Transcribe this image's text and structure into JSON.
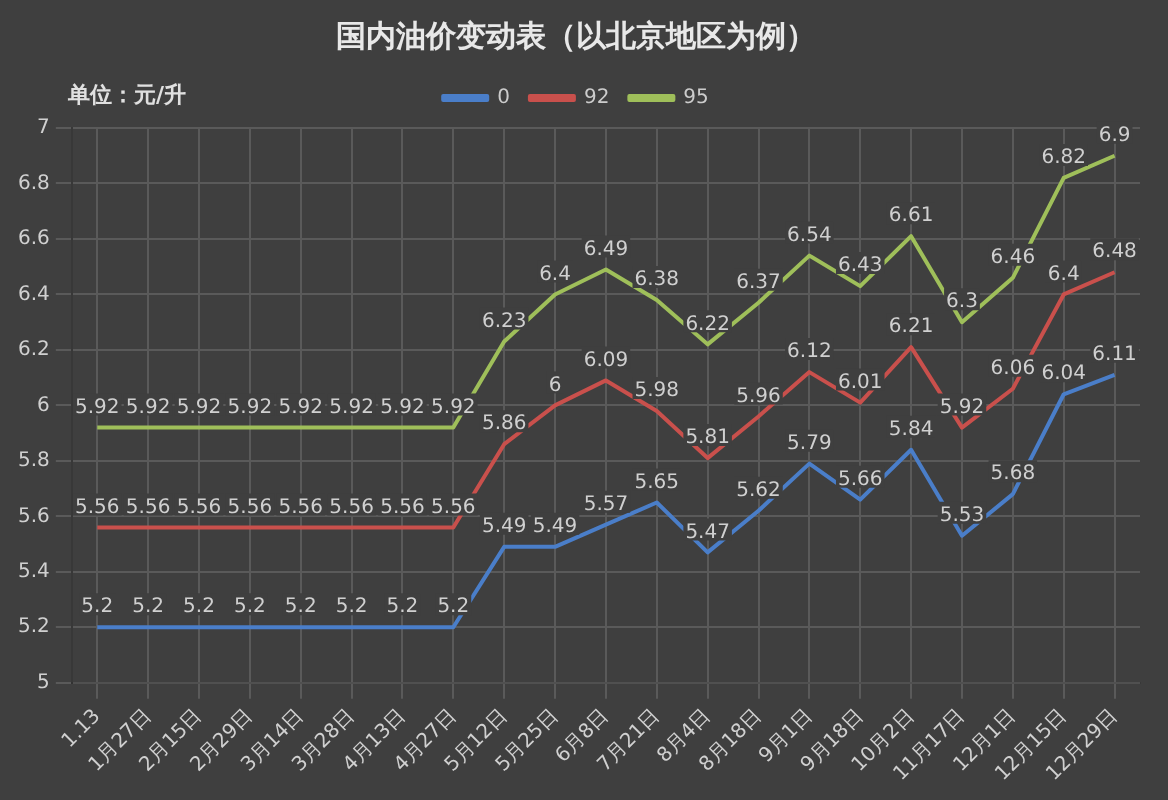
{
  "chart_data": {
    "type": "line",
    "title": "国内油价变动表（以北京地区为例）",
    "annotations": [
      "单位：元/升"
    ],
    "categories": [
      "1.13",
      "1月27日",
      "2月15日",
      "2月29日",
      "3月14日",
      "3月28日",
      "4月13日",
      "4月27日",
      "5月12日",
      "5月25日",
      "6月8日",
      "7月21日",
      "8月4日",
      "8月18日",
      "9月1日",
      "9月18日",
      "10月2日",
      "11月17日",
      "12月1日",
      "12月15日",
      "12月29日"
    ],
    "series": [
      {
        "name": "0",
        "color": "#4a7ec9",
        "values": [
          5.2,
          5.2,
          5.2,
          5.2,
          5.2,
          5.2,
          5.2,
          5.2,
          5.49,
          5.49,
          5.57,
          5.65,
          5.47,
          5.62,
          5.79,
          5.66,
          5.84,
          5.53,
          5.68,
          6.04,
          6.11
        ]
      },
      {
        "name": "92",
        "color": "#c9504c",
        "values": [
          5.56,
          5.56,
          5.56,
          5.56,
          5.56,
          5.56,
          5.56,
          5.56,
          5.86,
          6.0,
          6.09,
          5.98,
          5.81,
          5.96,
          6.12,
          6.01,
          6.21,
          5.92,
          6.06,
          6.4,
          6.48
        ]
      },
      {
        "name": "95",
        "color": "#9fbf5a",
        "values": [
          5.92,
          5.92,
          5.92,
          5.92,
          5.92,
          5.92,
          5.92,
          5.92,
          6.23,
          6.4,
          6.49,
          6.38,
          6.22,
          6.37,
          6.54,
          6.43,
          6.61,
          6.3,
          6.46,
          6.82,
          6.9
        ]
      }
    ],
    "ylim": [
      5,
      7
    ],
    "yticks": [
      5,
      5.2,
      5.4,
      5.6,
      5.8,
      6,
      6.2,
      6.4,
      6.6,
      6.8,
      7
    ],
    "grid": true,
    "legend": "top",
    "marker": "none",
    "line_style": "solid",
    "data_labels": true
  }
}
